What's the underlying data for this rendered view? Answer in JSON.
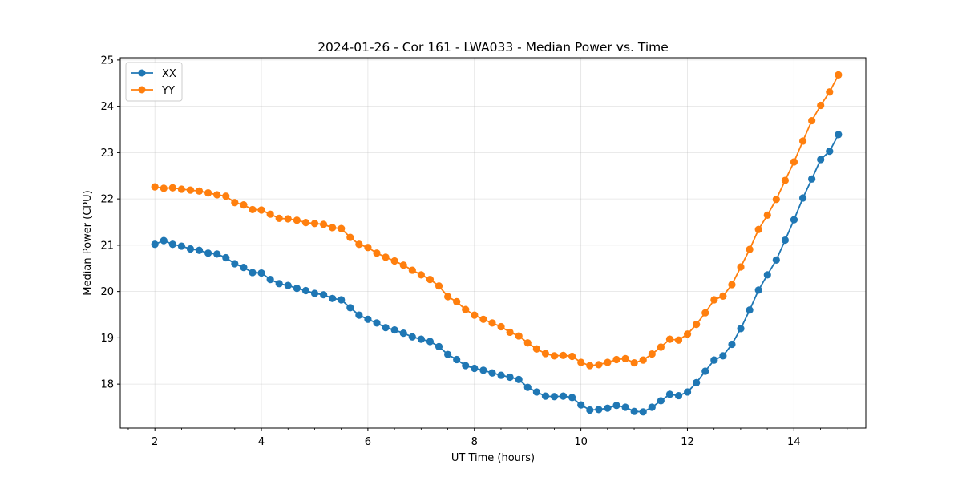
{
  "chart_data": {
    "type": "line",
    "title": "2024-01-26 - Cor 161 - LWA033 - Median Power vs. Time",
    "xlabel": "UT Time (hours)",
    "ylabel": "Median Power (CPU)",
    "xlim": [
      1.35,
      15.35
    ],
    "ylim": [
      17.05,
      25.05
    ],
    "xticks": [
      2,
      4,
      6,
      8,
      10,
      12,
      14
    ],
    "xtick_labels": [
      "2",
      "4",
      "6",
      "8",
      "10",
      "12",
      "14"
    ],
    "yticks": [
      18,
      19,
      20,
      21,
      22,
      23,
      24,
      25
    ],
    "ytick_labels": [
      "18",
      "19",
      "20",
      "21",
      "22",
      "23",
      "24",
      "25"
    ],
    "grid": true,
    "legend_position": "top-left",
    "x_start": 2.0,
    "x_step": 0.1667,
    "series": [
      {
        "name": "XX",
        "color": "#1f77b4",
        "values": [
          21.02,
          21.1,
          21.02,
          20.98,
          20.92,
          20.89,
          20.83,
          20.81,
          20.73,
          20.6,
          20.52,
          20.41,
          20.4,
          20.26,
          20.17,
          20.13,
          20.07,
          20.02,
          19.96,
          19.93,
          19.85,
          19.82,
          19.65,
          19.49,
          19.4,
          19.32,
          19.22,
          19.17,
          19.1,
          19.02,
          18.97,
          18.92,
          18.81,
          18.64,
          18.53,
          18.4,
          18.34,
          18.3,
          18.24,
          18.19,
          18.15,
          18.1,
          17.93,
          17.83,
          17.74,
          17.73,
          17.74,
          17.71,
          17.55,
          17.44,
          17.45,
          17.48,
          17.54,
          17.5,
          17.41,
          17.4,
          17.5,
          17.64,
          17.78,
          17.75,
          17.83,
          18.03,
          18.28,
          18.52,
          18.61,
          18.86,
          19.2,
          19.6,
          20.03,
          20.36,
          20.68,
          21.11,
          21.55,
          22.02,
          22.43,
          22.85,
          23.03,
          23.39
        ]
      },
      {
        "name": "YY",
        "color": "#ff7f0e",
        "values": [
          22.26,
          22.23,
          22.24,
          22.21,
          22.19,
          22.17,
          22.13,
          22.09,
          22.06,
          21.92,
          21.87,
          21.77,
          21.76,
          21.67,
          21.58,
          21.57,
          21.54,
          21.49,
          21.47,
          21.45,
          21.38,
          21.36,
          21.17,
          21.02,
          20.95,
          20.83,
          20.74,
          20.66,
          20.57,
          20.46,
          20.36,
          20.26,
          20.12,
          19.89,
          19.78,
          19.61,
          19.49,
          19.4,
          19.32,
          19.24,
          19.12,
          19.04,
          18.89,
          18.76,
          18.66,
          18.61,
          18.62,
          18.6,
          18.47,
          18.4,
          18.42,
          18.47,
          18.53,
          18.55,
          18.46,
          18.52,
          18.65,
          18.8,
          18.97,
          18.95,
          19.08,
          19.29,
          19.54,
          19.82,
          19.9,
          20.15,
          20.53,
          20.91,
          21.34,
          21.65,
          21.99,
          22.4,
          22.8,
          23.25,
          23.69,
          24.02,
          24.31,
          24.68
        ]
      }
    ]
  }
}
